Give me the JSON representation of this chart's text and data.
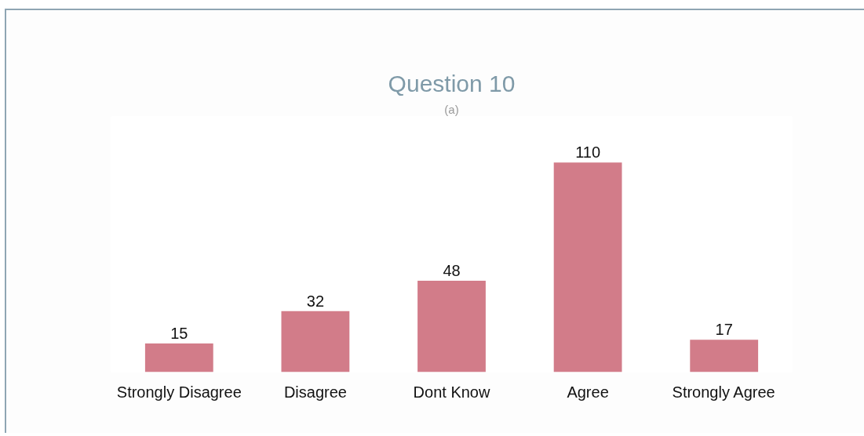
{
  "chart_data": {
    "type": "bar",
    "title": "Question 10",
    "subtitle": "(a)",
    "categories": [
      "Strongly Disagree",
      "Disagree",
      "Dont Know",
      "Agree",
      "Strongly Agree"
    ],
    "values": [
      15,
      32,
      48,
      110,
      17
    ],
    "color": "#d27c89",
    "data_labels": true
  }
}
